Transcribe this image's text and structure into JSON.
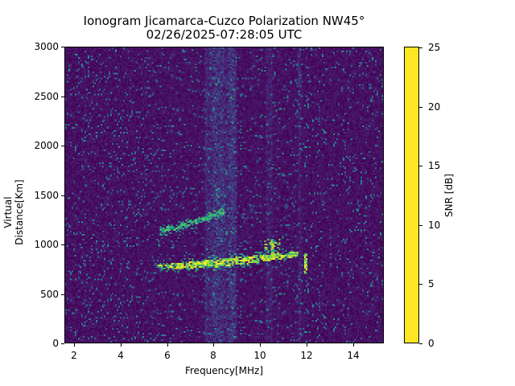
{
  "chart_data": {
    "type": "heatmap",
    "title": "Ionogram Jicamarca-Cuzco Polarization NW45°",
    "subtitle": "02/26/2025-07:28:05 UTC",
    "xlabel": "Frequency[MHz]",
    "ylabel": "Virtual Distance[Km]",
    "xlim": [
      1.6,
      15.3
    ],
    "ylim": [
      0,
      3000
    ],
    "x_ticks": [
      2,
      4,
      6,
      8,
      10,
      12,
      14
    ],
    "y_ticks": [
      0,
      500,
      1000,
      1500,
      2000,
      2500,
      3000
    ],
    "grid": false,
    "colorbar": {
      "label": "SNR [dB]",
      "colormap": "viridis",
      "range": [
        0,
        25
      ],
      "ticks": [
        0,
        5,
        10,
        15,
        20,
        25
      ]
    },
    "features": [
      {
        "name": "lower-trace (1-hop)",
        "freq_start_mhz": 5.6,
        "freq_end_mhz": 11.6,
        "distance_start_km": 770,
        "distance_end_km": 900,
        "snr_db": 25
      },
      {
        "name": "cusp near 10.5 MHz",
        "freq_mhz": 10.5,
        "distance_range_km": [
          850,
          1050
        ],
        "snr_db": 22
      },
      {
        "name": "upper-trace (2-hop)",
        "freq_start_mhz": 5.7,
        "freq_end_mhz": 8.5,
        "distance_start_km": 1140,
        "distance_end_km": 1340,
        "snr_db": 18
      },
      {
        "name": "vertical spike 12 MHz",
        "freq_mhz": 12.0,
        "distance_range_km": [
          700,
          900
        ],
        "snr_db": 25
      },
      {
        "name": "interference band",
        "freq_range_mhz": [
          7.6,
          9.0
        ],
        "snr_db": 3
      }
    ],
    "background_snr_db": 0.5
  }
}
